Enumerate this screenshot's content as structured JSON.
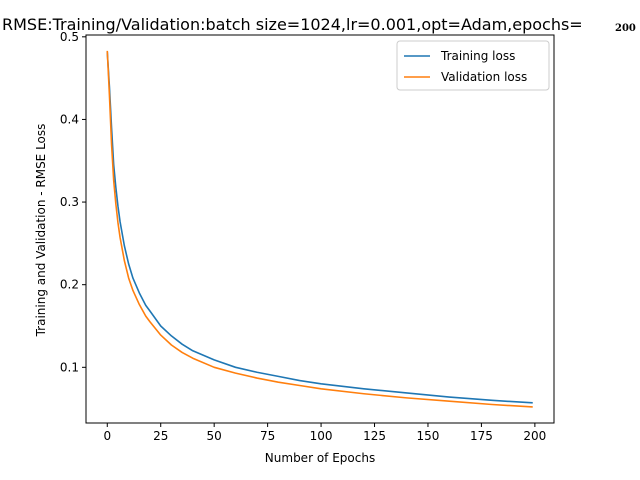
{
  "chart_data": {
    "type": "line",
    "title": "RMSE:Training/Validation:batch size=1024,lr=0.001,opt=Adam,epochs=",
    "title_suffix": "200",
    "xlabel": "Number of Epochs",
    "ylabel": "Training and Validation - RMSE Loss",
    "xlim": [
      -9.95,
      208.95
    ],
    "ylim": [
      0.0326,
      0.5022
    ],
    "xticks": [
      0,
      25,
      50,
      75,
      100,
      125,
      150,
      175,
      200
    ],
    "yticks": [
      0.1,
      0.2,
      0.3,
      0.4,
      0.5
    ],
    "grid": false,
    "legend_position": "top-right",
    "series": [
      {
        "name": "Training loss",
        "color": "#1f77b4",
        "x": [
          0,
          1,
          2,
          3,
          4,
          5,
          6,
          8,
          10,
          12,
          15,
          18,
          20,
          25,
          30,
          35,
          40,
          50,
          60,
          70,
          80,
          90,
          100,
          120,
          140,
          160,
          180,
          199
        ],
        "y": [
          0.482,
          0.44,
          0.39,
          0.345,
          0.318,
          0.295,
          0.276,
          0.247,
          0.225,
          0.208,
          0.19,
          0.175,
          0.168,
          0.15,
          0.138,
          0.128,
          0.12,
          0.109,
          0.1,
          0.094,
          0.089,
          0.084,
          0.08,
          0.074,
          0.069,
          0.064,
          0.06,
          0.057
        ]
      },
      {
        "name": "Validation loss",
        "color": "#ff7f0e",
        "x": [
          0,
          1,
          2,
          3,
          4,
          5,
          6,
          8,
          10,
          12,
          15,
          18,
          20,
          25,
          30,
          35,
          40,
          50,
          60,
          70,
          80,
          90,
          100,
          120,
          140,
          160,
          180,
          199
        ],
        "y": [
          0.483,
          0.43,
          0.37,
          0.326,
          0.298,
          0.275,
          0.257,
          0.229,
          0.208,
          0.193,
          0.176,
          0.162,
          0.155,
          0.139,
          0.127,
          0.118,
          0.111,
          0.1,
          0.093,
          0.087,
          0.082,
          0.078,
          0.074,
          0.068,
          0.063,
          0.059,
          0.055,
          0.052
        ]
      }
    ]
  }
}
